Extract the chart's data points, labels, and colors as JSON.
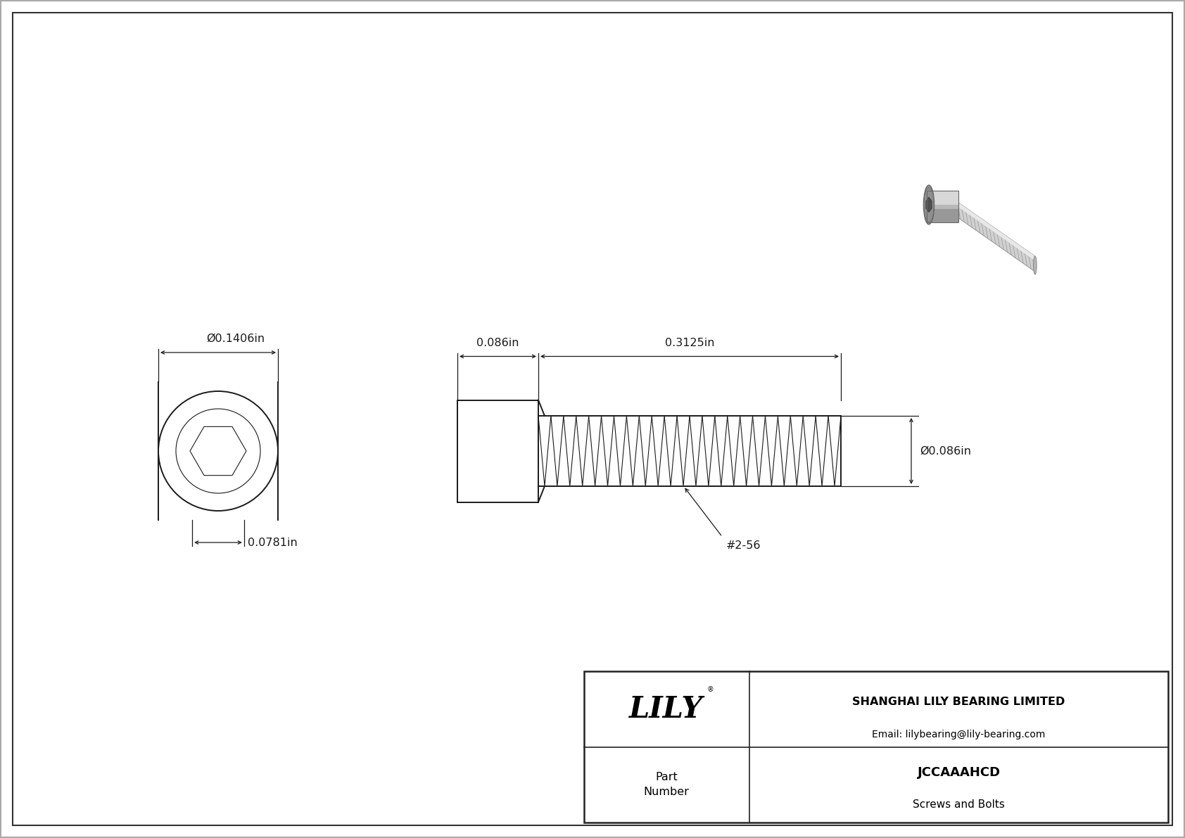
{
  "bg_color": "#ffffff",
  "drawing_bg": "#ffffff",
  "outer_border_color": "#888888",
  "inner_border_color": "#555555",
  "line_color": "#1a1a1a",
  "dim_color": "#1a1a1a",
  "title": "JCCAAAHCD",
  "subtitle": "Screws and Bolts",
  "company": "SHANGHAI LILY BEARING LIMITED",
  "email": "Email: lilybearing@lily-bearing.com",
  "part_label": "Part\nNumber",
  "dim_head_diameter": "Ø0.1406in",
  "dim_head_length": "0.086in",
  "dim_thread_length": "0.3125in",
  "dim_thread_diameter": "Ø0.086in",
  "dim_drive_diameter": "0.0781in",
  "thread_label": "#2-56",
  "logo_text": "LILY",
  "logo_r": "®"
}
